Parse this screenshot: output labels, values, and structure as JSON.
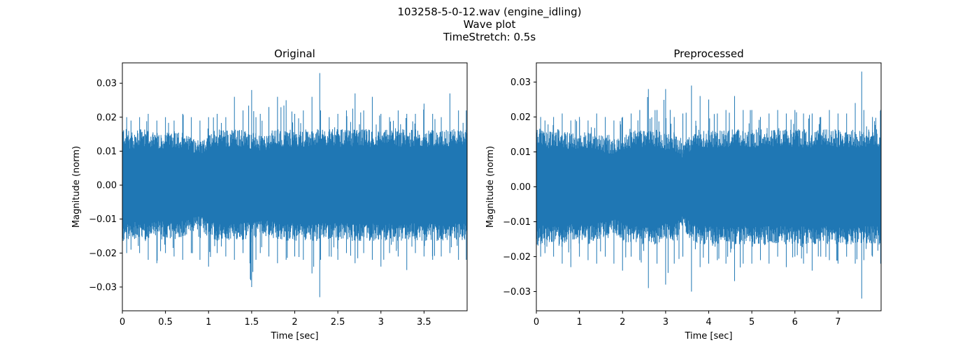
{
  "figure": {
    "title_line1": "103258-5-0-12.wav (engine_idling)",
    "title_line2": "Wave plot",
    "title_line3": "TimeStretch: 0.5s"
  },
  "chart_data": [
    {
      "type": "line",
      "title": "Original",
      "xlabel": "Time [sec]",
      "ylabel": "Magnitude (norm)",
      "xlim": [
        0,
        4.0
      ],
      "ylim": [
        -0.037,
        0.036
      ],
      "xticks": [
        0,
        0.5,
        1,
        1.5,
        2,
        2.5,
        3,
        3.5
      ],
      "xtick_labels": [
        "0",
        "0.5",
        "1",
        "1.5",
        "2",
        "2.5",
        "3",
        "3.5"
      ],
      "yticks": [
        0.03,
        0.02,
        0.01,
        0.0,
        -0.01,
        -0.02,
        -0.03
      ],
      "ytick_labels": [
        "0.03",
        "0.02",
        "0.01",
        "0.00",
        "−0.01",
        "−0.02",
        "−0.03"
      ],
      "grid": false,
      "color": "#1f77b4",
      "series": [
        {
          "x": [
            0.0,
            0.05,
            0.1,
            0.2,
            0.3,
            0.4,
            0.5,
            0.6,
            0.7,
            0.8,
            0.9,
            1.0,
            1.1,
            1.2,
            1.3,
            1.4,
            1.5,
            1.55,
            1.6,
            1.7,
            1.8,
            1.9,
            2.0,
            2.1,
            2.2,
            2.29,
            2.3,
            2.4,
            2.5,
            2.6,
            2.7,
            2.8,
            2.9,
            3.0,
            3.1,
            3.2,
            3.3,
            3.4,
            3.5,
            3.6,
            3.7,
            3.8,
            3.9,
            3.99
          ],
          "upper": [
            0.028,
            0.02,
            0.019,
            0.02,
            0.021,
            0.019,
            0.02,
            0.019,
            0.021,
            0.02,
            0.019,
            0.02,
            0.021,
            0.02,
            0.026,
            0.022,
            0.028,
            0.02,
            0.021,
            0.023,
            0.026,
            0.025,
            0.021,
            0.022,
            0.026,
            0.033,
            0.022,
            0.02,
            0.021,
            0.022,
            0.027,
            0.022,
            0.026,
            0.021,
            0.02,
            0.022,
            0.021,
            0.021,
            0.024,
            0.021,
            0.02,
            0.027,
            0.022,
            0.022
          ],
          "lower": [
            -0.028,
            -0.02,
            -0.019,
            -0.02,
            -0.022,
            -0.023,
            -0.02,
            -0.021,
            -0.022,
            -0.02,
            -0.022,
            -0.024,
            -0.02,
            -0.021,
            -0.022,
            -0.02,
            -0.03,
            -0.022,
            -0.02,
            -0.021,
            -0.023,
            -0.022,
            -0.021,
            -0.022,
            -0.026,
            -0.033,
            -0.022,
            -0.021,
            -0.022,
            -0.02,
            -0.023,
            -0.02,
            -0.022,
            -0.024,
            -0.02,
            -0.021,
            -0.025,
            -0.02,
            -0.021,
            -0.022,
            -0.021,
            -0.02,
            -0.022,
            -0.022
          ],
          "envelope_upper": [
            0.016,
            0.015,
            0.014,
            0.015,
            0.015,
            0.014,
            0.014,
            0.015,
            0.014,
            0.013,
            0.012,
            0.014,
            0.015,
            0.015,
            0.015,
            0.015,
            0.014,
            0.014,
            0.013,
            0.014,
            0.015,
            0.015,
            0.015,
            0.015,
            0.015,
            0.015,
            0.015,
            0.015,
            0.015,
            0.015,
            0.015,
            0.015,
            0.015,
            0.015,
            0.015,
            0.015,
            0.015,
            0.015,
            0.015,
            0.015,
            0.015,
            0.015,
            0.015,
            0.015
          ],
          "envelope_lower": [
            -0.016,
            -0.015,
            -0.014,
            -0.015,
            -0.015,
            -0.014,
            -0.014,
            -0.015,
            -0.014,
            -0.013,
            -0.012,
            -0.014,
            -0.015,
            -0.015,
            -0.015,
            -0.015,
            -0.014,
            -0.014,
            -0.013,
            -0.014,
            -0.015,
            -0.015,
            -0.015,
            -0.015,
            -0.015,
            -0.015,
            -0.015,
            -0.015,
            -0.015,
            -0.015,
            -0.015,
            -0.015,
            -0.015,
            -0.015,
            -0.015,
            -0.015,
            -0.015,
            -0.015,
            -0.015,
            -0.015,
            -0.015,
            -0.015,
            -0.015,
            -0.015
          ]
        }
      ]
    },
    {
      "type": "line",
      "title": "Preprocessed",
      "xlabel": "Time [sec]",
      "ylabel": "Magnitude (norm)",
      "xlim": [
        0,
        8.0
      ],
      "ylim": [
        -0.0355,
        0.0355
      ],
      "xticks": [
        0,
        1,
        2,
        3,
        4,
        5,
        6,
        7
      ],
      "xtick_labels": [
        "0",
        "1",
        "2",
        "3",
        "4",
        "5",
        "6",
        "7"
      ],
      "yticks": [
        0.03,
        0.02,
        0.01,
        0.0,
        -0.01,
        -0.02,
        -0.03
      ],
      "ytick_labels": [
        "0.03",
        "0.02",
        "0.01",
        "0.00",
        "−0.01",
        "−0.02",
        "−0.03"
      ],
      "grid": false,
      "color": "#1f77b4",
      "series": [
        {
          "x": [
            0.0,
            0.1,
            0.2,
            0.4,
            0.6,
            0.8,
            1.0,
            1.2,
            1.4,
            1.6,
            1.8,
            2.0,
            2.2,
            2.4,
            2.6,
            2.8,
            3.0,
            3.2,
            3.4,
            3.6,
            3.8,
            4.0,
            4.2,
            4.4,
            4.6,
            4.8,
            5.0,
            5.2,
            5.4,
            5.6,
            5.8,
            6.0,
            6.2,
            6.4,
            6.6,
            6.8,
            7.0,
            7.2,
            7.4,
            7.55,
            7.6,
            7.8,
            7.99
          ],
          "upper": [
            0.03,
            0.02,
            0.019,
            0.02,
            0.021,
            0.019,
            0.02,
            0.019,
            0.021,
            0.02,
            0.019,
            0.02,
            0.021,
            0.022,
            0.028,
            0.022,
            0.028,
            0.02,
            0.021,
            0.029,
            0.026,
            0.025,
            0.021,
            0.022,
            0.026,
            0.022,
            0.022,
            0.02,
            0.021,
            0.022,
            0.021,
            0.022,
            0.021,
            0.021,
            0.02,
            0.022,
            0.021,
            0.021,
            0.024,
            0.033,
            0.022,
            0.02,
            0.022
          ],
          "lower": [
            -0.03,
            -0.02,
            -0.019,
            -0.02,
            -0.022,
            -0.023,
            -0.02,
            -0.021,
            -0.022,
            -0.02,
            -0.022,
            -0.024,
            -0.02,
            -0.021,
            -0.029,
            -0.022,
            -0.028,
            -0.022,
            -0.02,
            -0.03,
            -0.023,
            -0.022,
            -0.021,
            -0.022,
            -0.027,
            -0.022,
            -0.022,
            -0.021,
            -0.022,
            -0.02,
            -0.023,
            -0.02,
            -0.022,
            -0.024,
            -0.02,
            -0.021,
            -0.022,
            -0.02,
            -0.022,
            -0.032,
            -0.021,
            -0.02,
            -0.022
          ],
          "envelope_upper": [
            0.016,
            0.015,
            0.014,
            0.015,
            0.015,
            0.014,
            0.014,
            0.015,
            0.014,
            0.013,
            0.012,
            0.014,
            0.015,
            0.015,
            0.015,
            0.015,
            0.014,
            0.014,
            0.011,
            0.014,
            0.015,
            0.015,
            0.015,
            0.015,
            0.015,
            0.015,
            0.015,
            0.015,
            0.015,
            0.015,
            0.015,
            0.015,
            0.015,
            0.015,
            0.015,
            0.015,
            0.015,
            0.015,
            0.015,
            0.015,
            0.015,
            0.015,
            0.015
          ],
          "envelope_lower": [
            -0.016,
            -0.015,
            -0.014,
            -0.015,
            -0.015,
            -0.014,
            -0.014,
            -0.015,
            -0.014,
            -0.013,
            -0.012,
            -0.014,
            -0.015,
            -0.015,
            -0.015,
            -0.015,
            -0.014,
            -0.014,
            -0.011,
            -0.014,
            -0.015,
            -0.015,
            -0.015,
            -0.015,
            -0.015,
            -0.015,
            -0.015,
            -0.015,
            -0.015,
            -0.015,
            -0.015,
            -0.015,
            -0.015,
            -0.015,
            -0.015,
            -0.015,
            -0.015,
            -0.015,
            -0.015,
            -0.015,
            -0.015,
            -0.015,
            -0.015
          ]
        }
      ]
    }
  ]
}
